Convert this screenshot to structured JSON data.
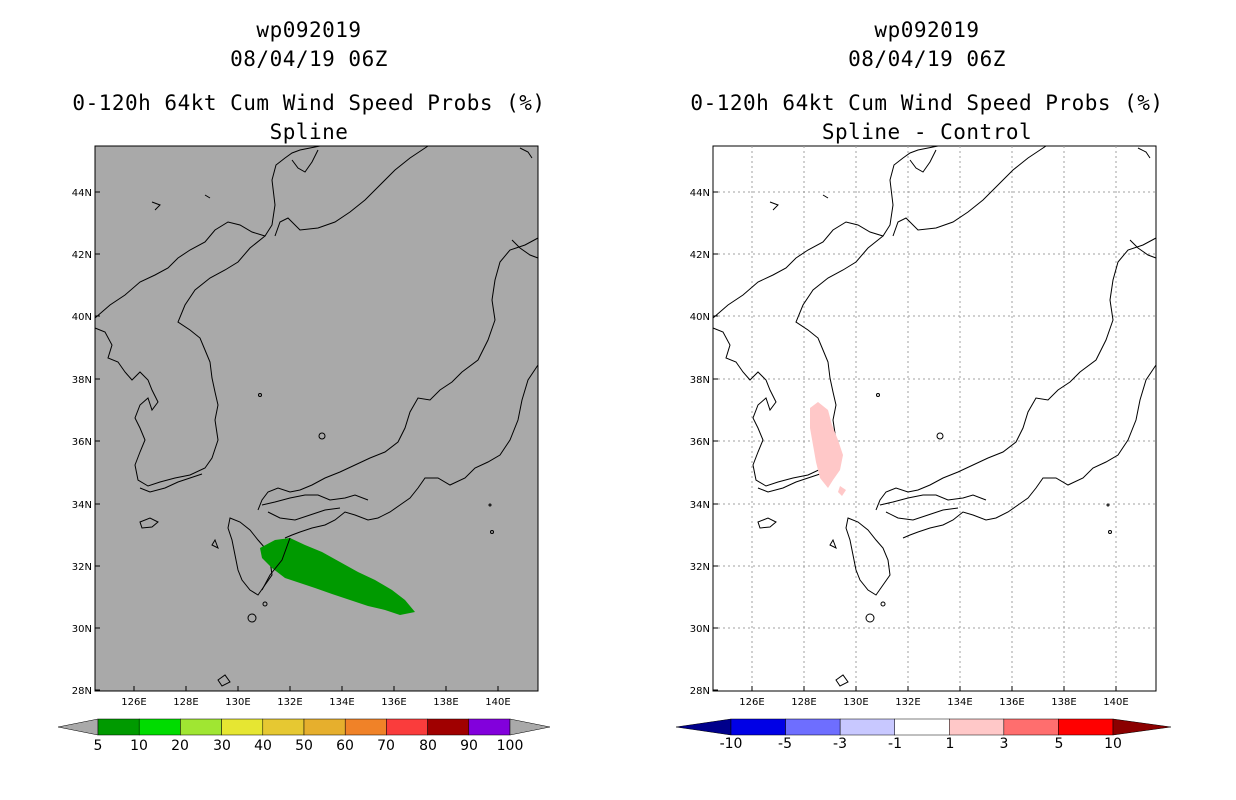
{
  "panels": [
    {
      "id": "spline",
      "title_line1": "wp092019",
      "title_line2": "08/04/19 06Z",
      "title_line3": "0-120h 64kt Cum Wind Speed Probs (%)",
      "title_line4": "Spline",
      "map_background": "#a9a9a9",
      "gridlines": false,
      "lat_labels": [
        "44N",
        "42N",
        "40N",
        "38N",
        "36N",
        "34N",
        "32N",
        "30N",
        "28N"
      ],
      "lon_labels": [
        "126E",
        "128E",
        "130E",
        "132E",
        "134E",
        "136E",
        "138E",
        "140E"
      ],
      "shaded_region": {
        "description": "wind probability swath",
        "category": "5-10",
        "color": "#009a00"
      },
      "colorbar": {
        "labels": [
          "5",
          "10",
          "20",
          "30",
          "40",
          "50",
          "60",
          "70",
          "80",
          "90",
          "100"
        ],
        "colors": [
          "#009a00",
          "#00dc00",
          "#a0e632",
          "#e6e632",
          "#e6c832",
          "#e6af2d",
          "#f08228",
          "#fa3c3c",
          "#a00000",
          "#8200dc"
        ],
        "under_color": "#a9a9a9",
        "over_color": "#a9a9a9"
      }
    },
    {
      "id": "diff",
      "title_line1": "wp092019",
      "title_line2": "08/04/19 06Z",
      "title_line3": "0-120h 64kt Cum Wind Speed Probs (%)",
      "title_line4": "Spline - Control",
      "map_background": "#ffffff",
      "gridlines": true,
      "lat_labels": [
        "44N",
        "42N",
        "40N",
        "38N",
        "36N",
        "34N",
        "32N",
        "30N",
        "28N"
      ],
      "lon_labels": [
        "126E",
        "128E",
        "130E",
        "132E",
        "134E",
        "136E",
        "138E",
        "140E"
      ],
      "shaded_region": {
        "description": "difference swath",
        "category": "1-3",
        "color": "#ffc8c8"
      },
      "colorbar": {
        "labels": [
          "-10",
          "-5",
          "-3",
          "-1",
          "1",
          "3",
          "5",
          "10"
        ],
        "colors": [
          "#0000e6",
          "#6e6eff",
          "#c8c8ff",
          "#ffffff",
          "#ffc8c8",
          "#ff6e6e",
          "#ff0000"
        ],
        "under_color": "#00008b",
        "over_color": "#8b0000"
      }
    }
  ]
}
